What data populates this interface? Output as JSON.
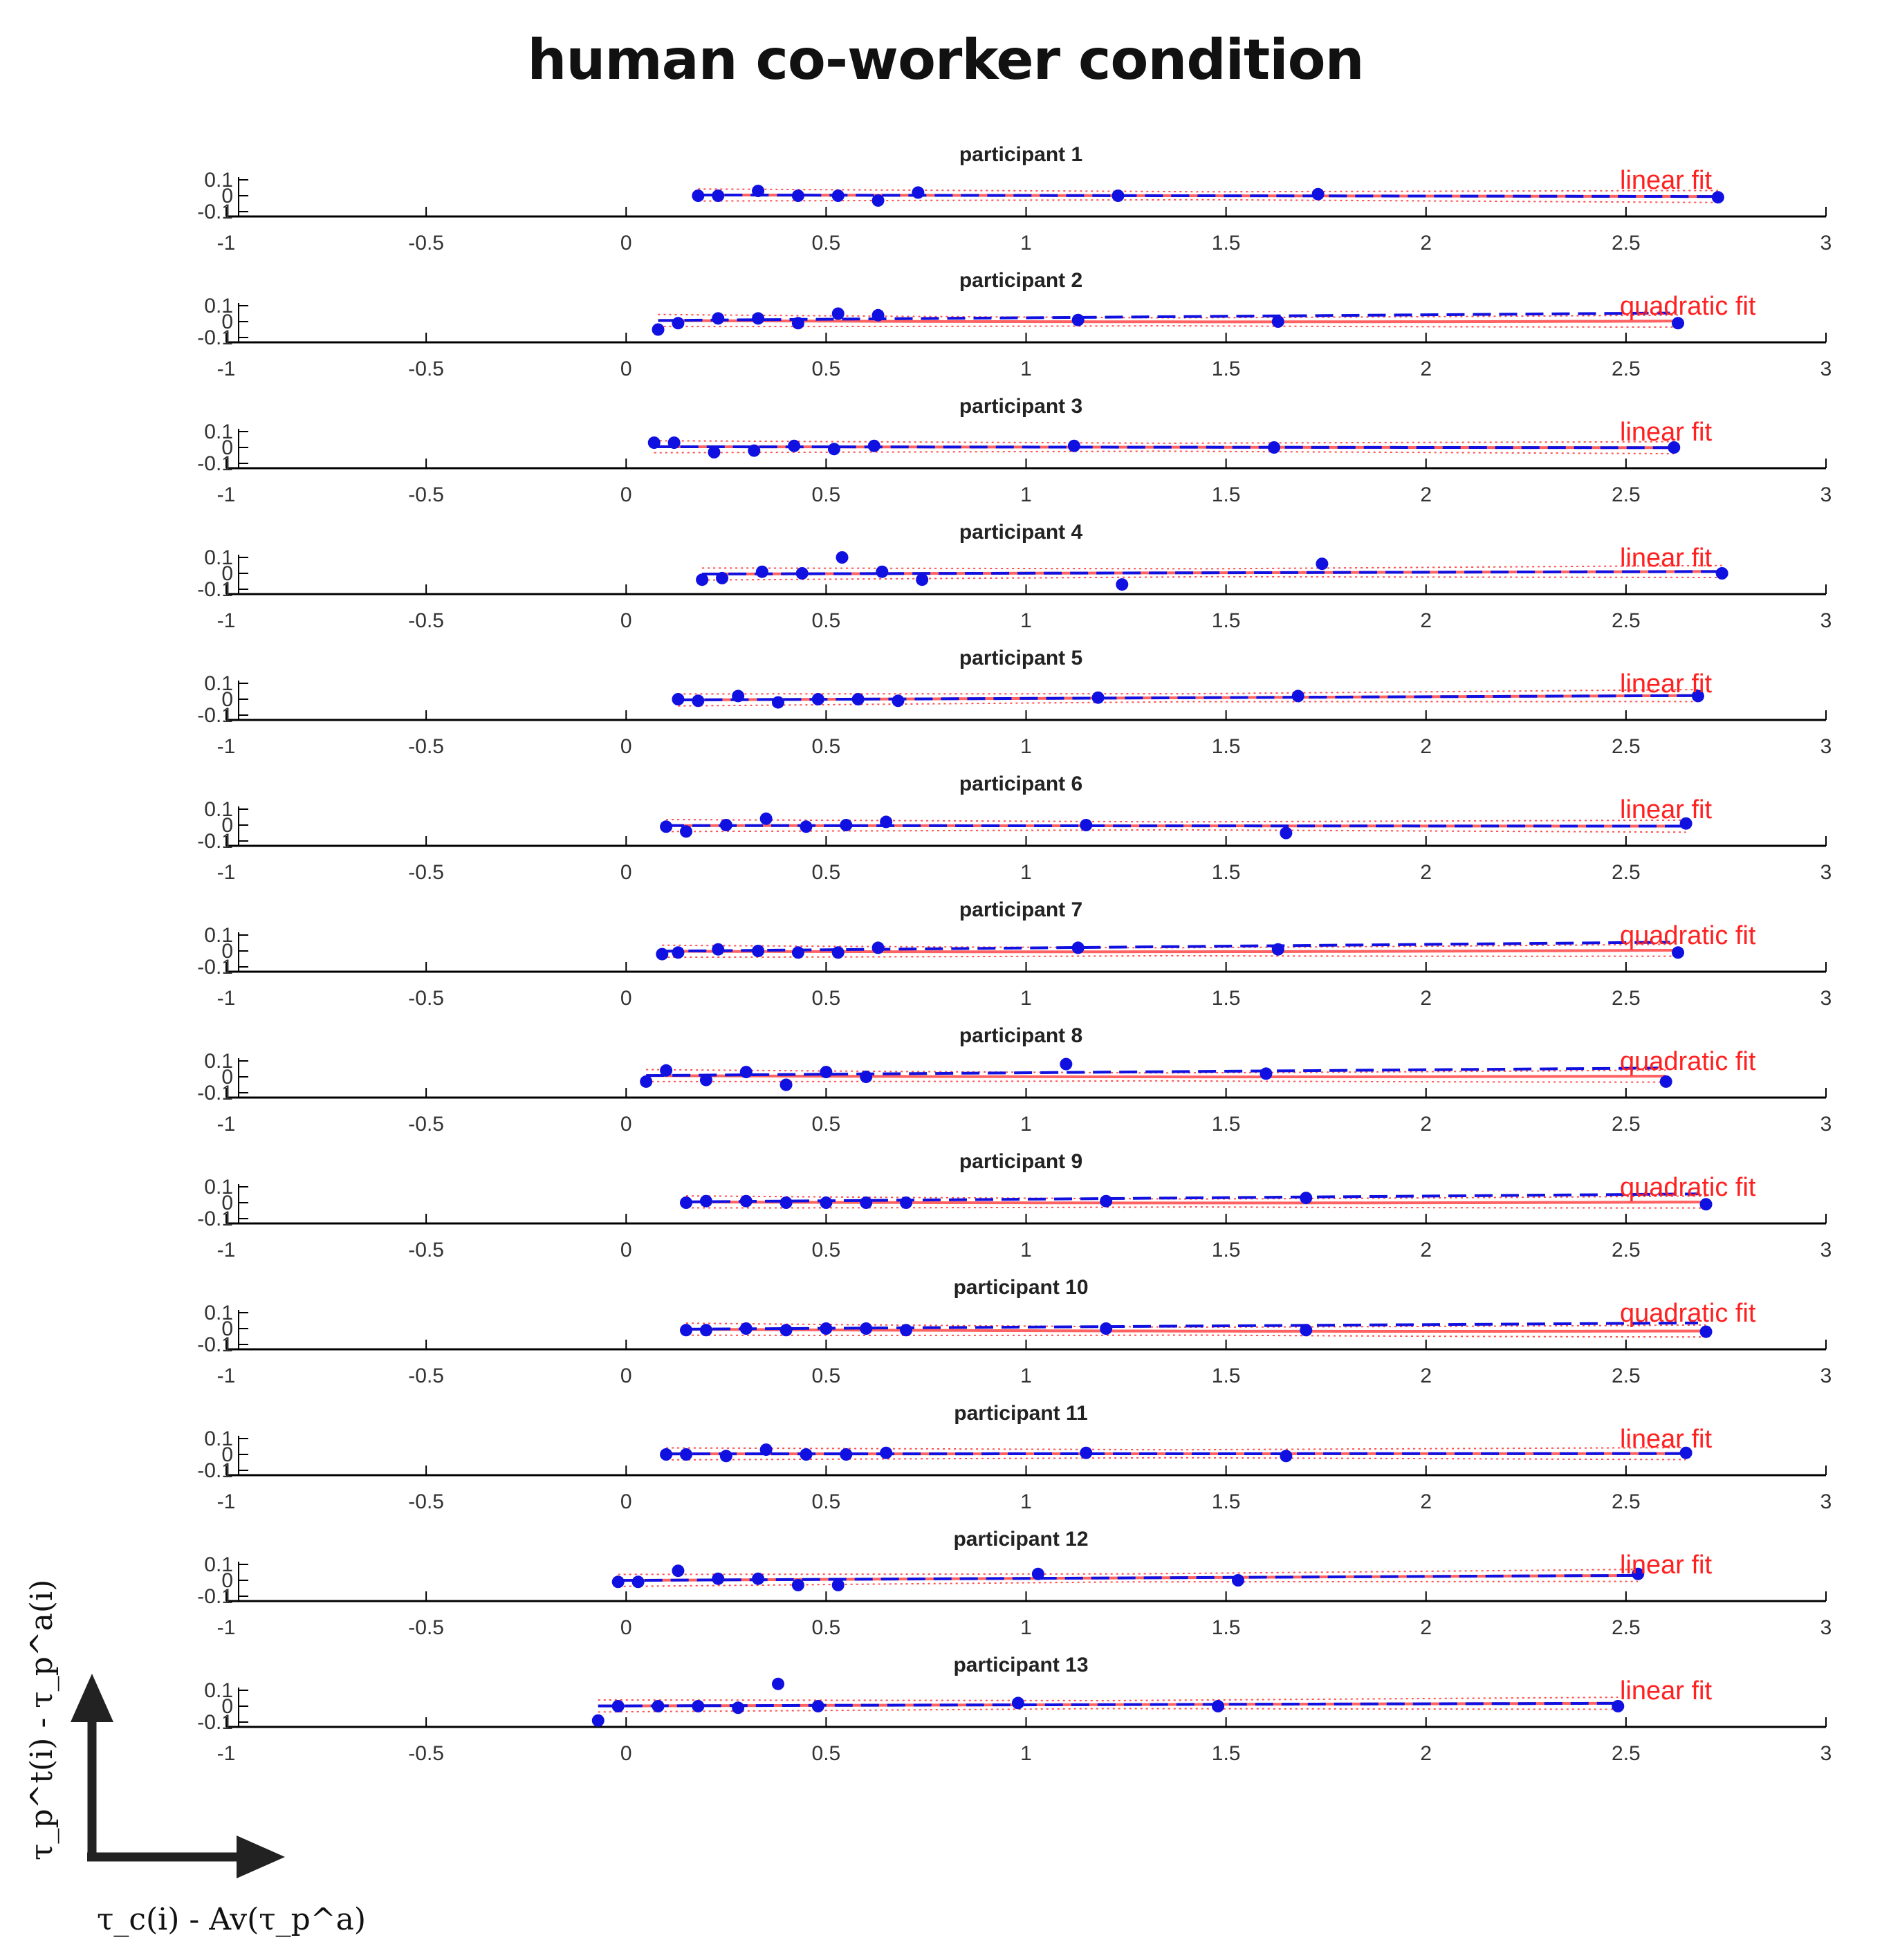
{
  "title": "human co-worker condition",
  "axis_indicator": {
    "x_label": "τ_c(i) - Av(τ_p^a)",
    "y_label": "τ_p^t(i) - τ_p^a(i)"
  },
  "colors": {
    "data": "#1010e0",
    "fit": "#ff2020",
    "axis": "#000000"
  },
  "chart_data": [
    {
      "type": "scatter",
      "title": "participant 1",
      "fit_label": "linear fit",
      "fit": "linear",
      "x": [
        0.18,
        0.23,
        0.33,
        0.43,
        0.53,
        0.63,
        0.73,
        1.23,
        1.73,
        2.73
      ],
      "y": [
        0.0,
        0.0,
        0.03,
        0.0,
        0.0,
        -0.03,
        0.02,
        0.0,
        0.01,
        -0.01
      ],
      "xlim": [
        -1,
        3
      ],
      "yticks": [
        "0.1",
        "0",
        "-0.1"
      ]
    },
    {
      "type": "scatter",
      "title": "participant 2",
      "fit_label": "quadratic fit",
      "fit": "quadratic",
      "x": [
        0.08,
        0.13,
        0.23,
        0.33,
        0.43,
        0.53,
        0.63,
        1.13,
        1.63,
        2.63
      ],
      "y": [
        -0.05,
        -0.01,
        0.02,
        0.02,
        -0.01,
        0.05,
        0.04,
        0.01,
        0.0,
        -0.01
      ],
      "xlim": [
        -1,
        3
      ],
      "yticks": [
        "0.1",
        "0",
        "-0.1"
      ]
    },
    {
      "type": "scatter",
      "title": "participant 3",
      "fit_label": "linear fit",
      "fit": "linear",
      "x": [
        0.07,
        0.12,
        0.22,
        0.32,
        0.42,
        0.52,
        0.62,
        1.12,
        1.62,
        2.62
      ],
      "y": [
        0.03,
        0.03,
        -0.03,
        -0.02,
        0.01,
        -0.01,
        0.01,
        0.01,
        0.0,
        0.0
      ],
      "xlim": [
        -1,
        3
      ],
      "yticks": [
        "0.1",
        "0",
        "-0.1"
      ]
    },
    {
      "type": "scatter",
      "title": "participant 4",
      "fit_label": "linear fit",
      "fit": "linear",
      "x": [
        0.19,
        0.24,
        0.34,
        0.44,
        0.54,
        0.64,
        0.74,
        1.24,
        1.74,
        2.74
      ],
      "y": [
        -0.04,
        -0.03,
        0.01,
        0.0,
        0.1,
        0.01,
        -0.04,
        -0.07,
        0.06,
        0.0
      ],
      "xlim": [
        -1,
        3
      ],
      "yticks": [
        "0.1",
        "0",
        "-0.1"
      ]
    },
    {
      "type": "scatter",
      "title": "participant 5",
      "fit_label": "linear fit",
      "fit": "linear",
      "x": [
        0.13,
        0.18,
        0.28,
        0.38,
        0.48,
        0.58,
        0.68,
        1.18,
        1.68,
        2.68
      ],
      "y": [
        0.0,
        -0.01,
        0.02,
        -0.02,
        0.0,
        0.0,
        -0.01,
        0.01,
        0.02,
        0.02
      ],
      "xlim": [
        -1,
        3
      ],
      "yticks": [
        "0.1",
        "0",
        "-0.1"
      ]
    },
    {
      "type": "scatter",
      "title": "participant 6",
      "fit_label": "linear fit",
      "fit": "linear",
      "x": [
        0.1,
        0.15,
        0.25,
        0.35,
        0.45,
        0.55,
        0.65,
        1.15,
        1.65,
        2.65
      ],
      "y": [
        -0.01,
        -0.04,
        0.0,
        0.04,
        -0.01,
        0.0,
        0.02,
        0.0,
        -0.05,
        0.01
      ],
      "xlim": [
        -1,
        3
      ],
      "yticks": [
        "0.1",
        "0",
        "-0.1"
      ]
    },
    {
      "type": "scatter",
      "title": "participant 7",
      "fit_label": "quadratic fit",
      "fit": "quadratic",
      "x": [
        0.09,
        0.13,
        0.23,
        0.33,
        0.43,
        0.53,
        0.63,
        1.13,
        1.63,
        2.63
      ],
      "y": [
        -0.02,
        -0.01,
        0.01,
        0.0,
        -0.01,
        -0.01,
        0.02,
        0.02,
        0.01,
        -0.01
      ],
      "xlim": [
        -1,
        3
      ],
      "yticks": [
        "0.1",
        "0",
        "-0.1"
      ]
    },
    {
      "type": "scatter",
      "title": "participant 8",
      "fit_label": "quadratic fit",
      "fit": "quadratic",
      "x": [
        0.05,
        0.1,
        0.2,
        0.3,
        0.4,
        0.5,
        0.6,
        1.1,
        1.6,
        2.6
      ],
      "y": [
        -0.03,
        0.04,
        -0.02,
        0.03,
        -0.05,
        0.03,
        0.0,
        0.08,
        0.02,
        -0.03
      ],
      "xlim": [
        -1,
        3
      ],
      "yticks": [
        "0.1",
        "0",
        "-0.1"
      ]
    },
    {
      "type": "scatter",
      "title": "participant 9",
      "fit_label": "quadratic fit",
      "fit": "quadratic",
      "x": [
        0.15,
        0.2,
        0.3,
        0.4,
        0.5,
        0.6,
        0.7,
        1.2,
        1.7,
        2.7
      ],
      "y": [
        0.0,
        0.01,
        0.01,
        0.0,
        0.0,
        0.0,
        0.0,
        0.01,
        0.03,
        -0.01
      ],
      "xlim": [
        -1,
        3
      ],
      "yticks": [
        "0.1",
        "0",
        "-0.1"
      ]
    },
    {
      "type": "scatter",
      "title": "participant 10",
      "fit_label": "quadratic fit",
      "fit": "quadratic",
      "x": [
        0.15,
        0.2,
        0.3,
        0.4,
        0.5,
        0.6,
        0.7,
        1.2,
        1.7,
        2.7
      ],
      "y": [
        -0.01,
        -0.01,
        0.0,
        -0.01,
        0.0,
        0.0,
        -0.01,
        0.0,
        -0.01,
        -0.02
      ],
      "xlim": [
        -1,
        3
      ],
      "yticks": [
        "0.1",
        "0",
        "-0.1"
      ]
    },
    {
      "type": "scatter",
      "title": "participant 11",
      "fit_label": "linear fit",
      "fit": "linear",
      "x": [
        0.1,
        0.15,
        0.25,
        0.35,
        0.45,
        0.55,
        0.65,
        1.15,
        1.65,
        2.65
      ],
      "y": [
        0.0,
        0.0,
        -0.01,
        0.03,
        0.0,
        0.0,
        0.01,
        0.01,
        -0.01,
        0.01
      ],
      "xlim": [
        -1,
        3
      ],
      "yticks": [
        "0.1",
        "0",
        "-0.1"
      ]
    },
    {
      "type": "scatter",
      "title": "participant 12",
      "fit_label": "linear fit",
      "fit": "linear",
      "x": [
        -0.02,
        0.03,
        0.13,
        0.23,
        0.33,
        0.43,
        0.53,
        1.03,
        1.53,
        2.53
      ],
      "y": [
        -0.01,
        -0.01,
        0.06,
        0.01,
        0.01,
        -0.03,
        -0.03,
        0.04,
        0.0,
        0.04
      ],
      "xlim": [
        -1,
        3
      ],
      "yticks": [
        "0.1",
        "0",
        "-0.1"
      ]
    },
    {
      "type": "scatter",
      "title": "participant 13",
      "fit_label": "linear fit",
      "fit": "linear",
      "x": [
        -0.07,
        -0.02,
        0.08,
        0.18,
        0.28,
        0.38,
        0.48,
        0.98,
        1.48,
        2.48
      ],
      "y": [
        -0.09,
        0.0,
        0.0,
        0.0,
        -0.01,
        0.14,
        0.0,
        0.02,
        0.0,
        0.0
      ],
      "xlim": [
        -1,
        3
      ],
      "yticks": [
        "0.1",
        "0",
        "-0.1"
      ]
    }
  ],
  "xticks": [
    "-1",
    "-0.5",
    "0",
    "0.5",
    "1",
    "1.5",
    "2",
    "2.5",
    "3"
  ]
}
